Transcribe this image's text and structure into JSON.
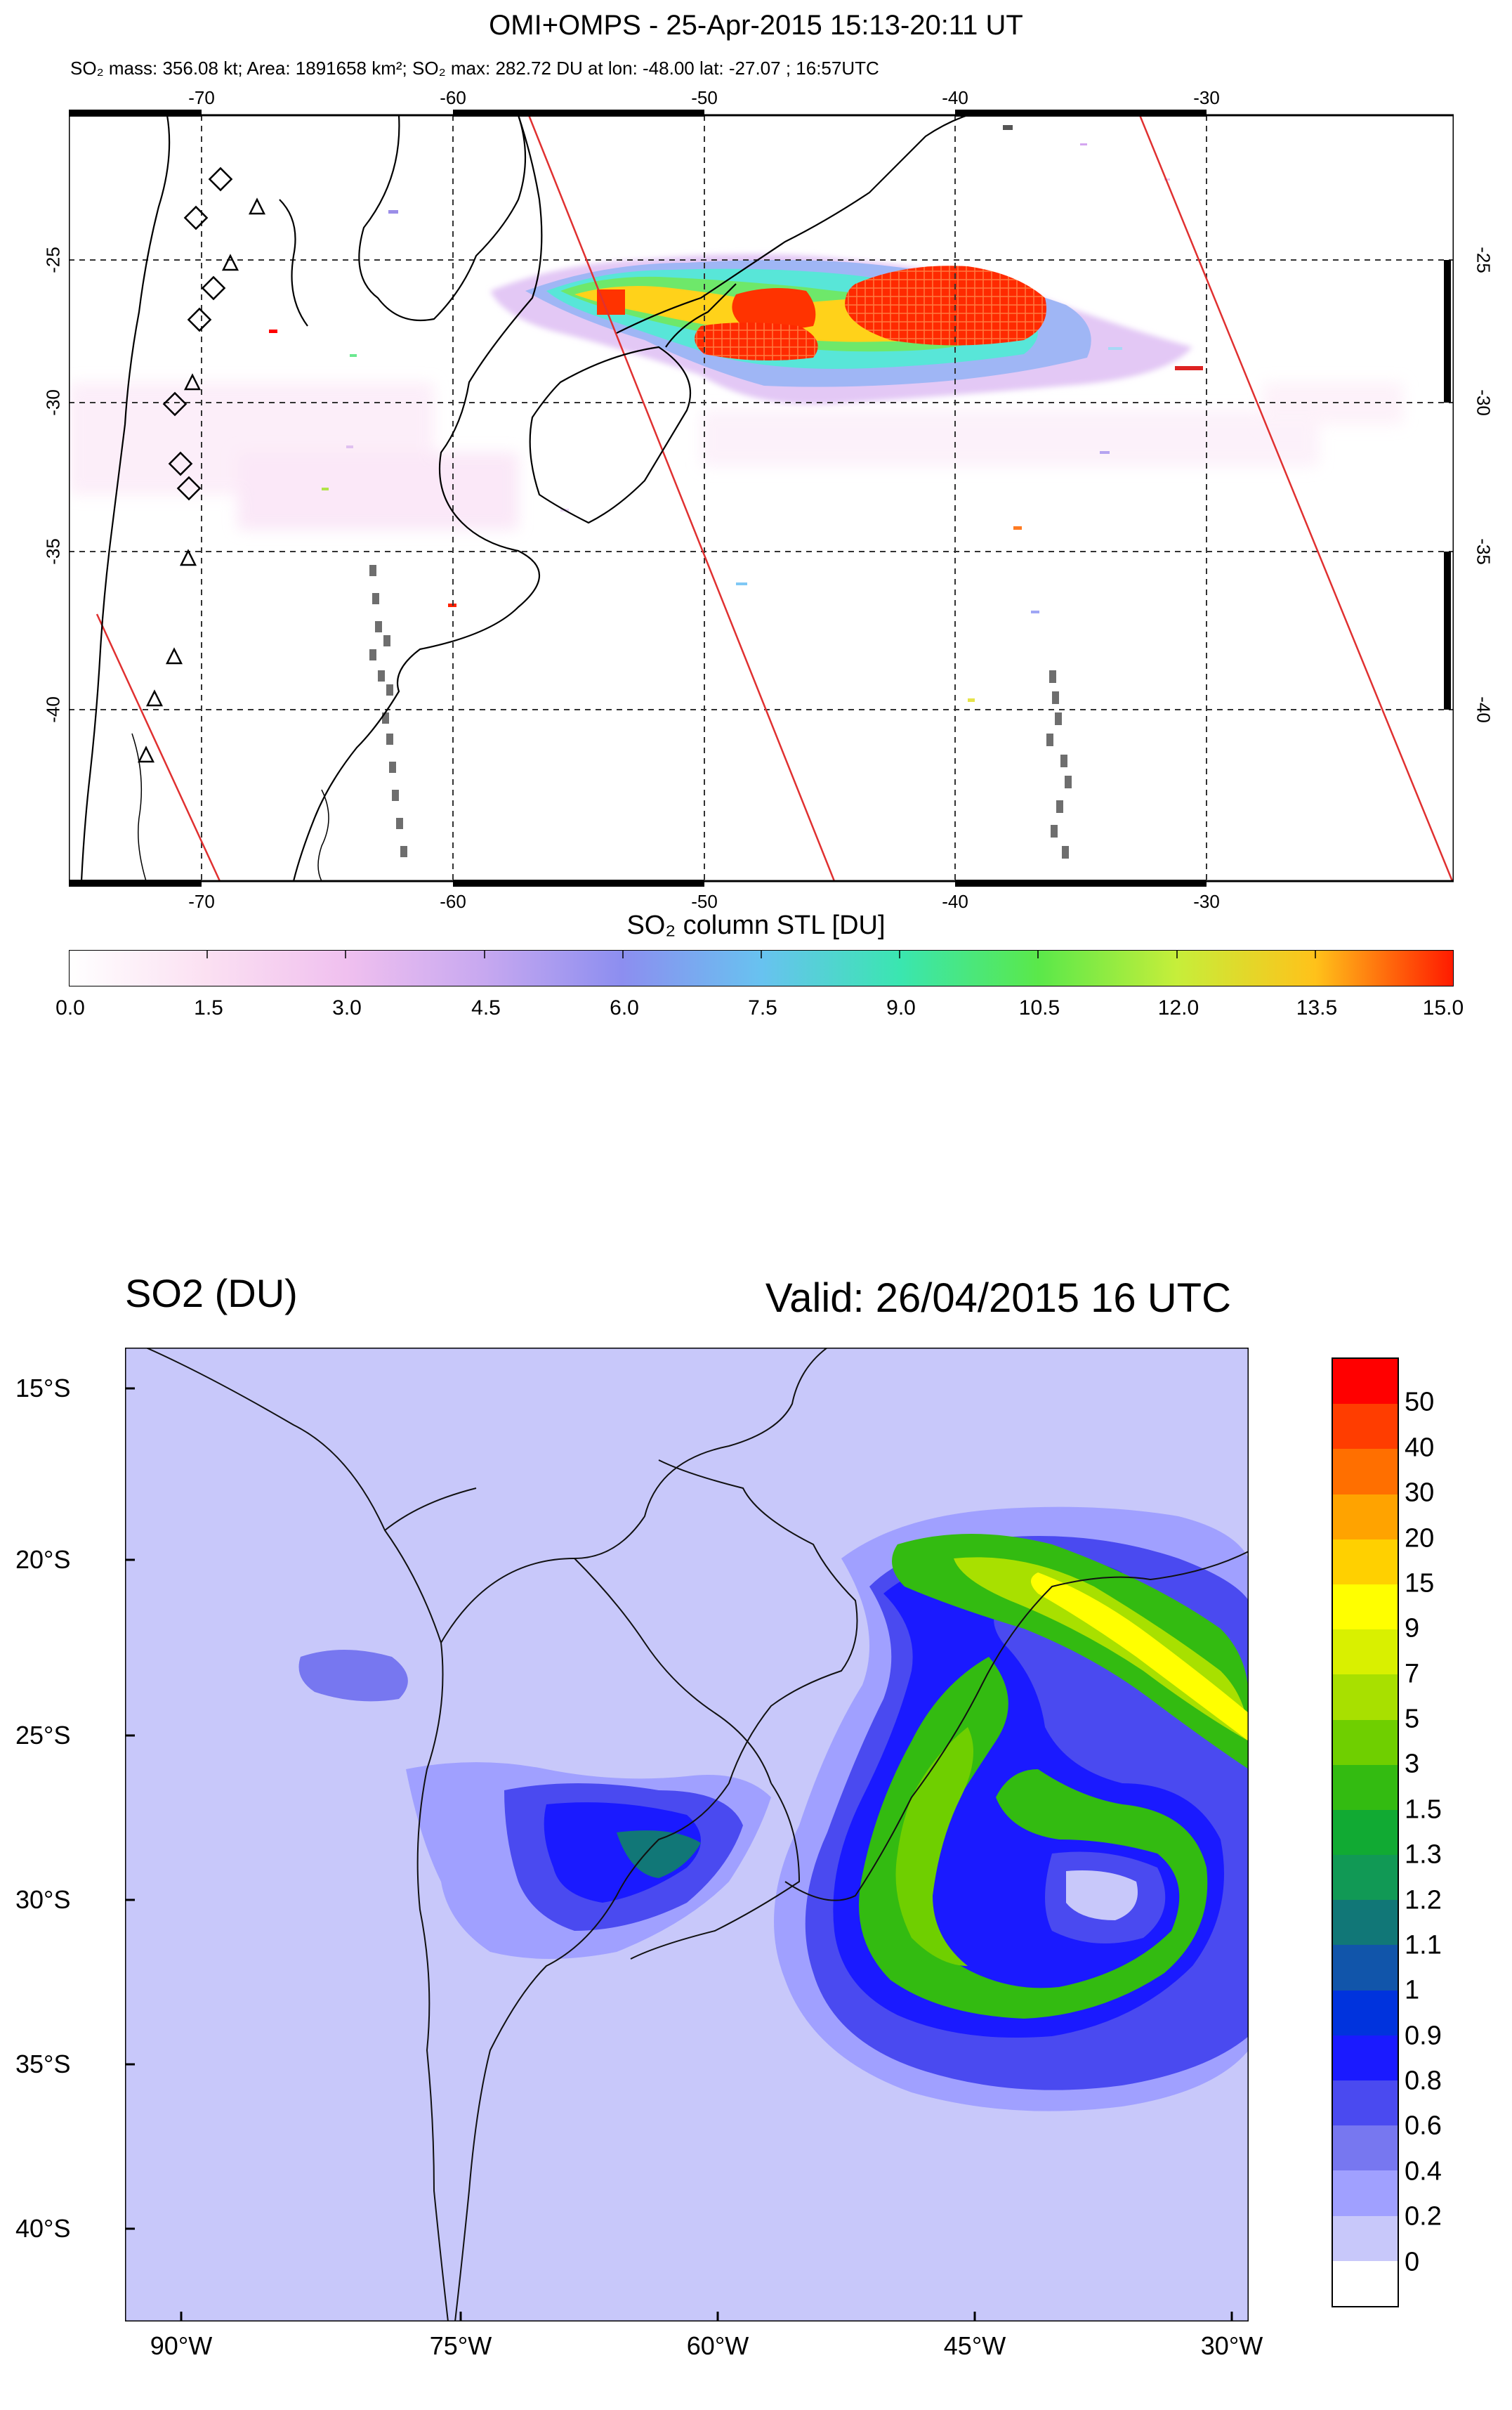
{
  "panel1": {
    "title": "OMI+OMPS - 25-Apr-2015 15:13-20:11 UT",
    "subtitle": "SO₂ mass: 356.08 kt; Area: 1891658 km²; SO₂ max: 282.72 DU at lon: -48.00 lat: -27.07 ; 16:57UTC",
    "lon_ticks": [
      "-70",
      "-60",
      "-50",
      "-40",
      "-30"
    ],
    "lat_ticks": [
      "-25",
      "-30",
      "-35",
      "-40"
    ],
    "colorbar": {
      "title": "SO₂ column STL [DU]",
      "labels": [
        "0.0",
        "1.5",
        "3.0",
        "4.5",
        "6.0",
        "7.5",
        "9.0",
        "10.5",
        "12.0",
        "13.5",
        "15.0"
      ],
      "range": [
        0,
        15
      ]
    }
  },
  "panel2": {
    "title": "SO2 (DU)",
    "valid": "Valid: 26/04/2015  16 UTC",
    "lat_ticks": [
      "15°S",
      "20°S",
      "25°S",
      "30°S",
      "35°S",
      "40°S"
    ],
    "lon_ticks": [
      "90°W",
      "75°W",
      "60°W",
      "45°W",
      "30°W"
    ],
    "legend": {
      "levels": [
        "50",
        "40",
        "30",
        "20",
        "15",
        "9",
        "7",
        "5",
        "3",
        "1.5",
        "1.3",
        "1.2",
        "1.1",
        "1",
        "0.9",
        "0.8",
        "0.6",
        "0.4",
        "0.2",
        "0"
      ],
      "colors": [
        "#ff0000",
        "#ff3d00",
        "#ff6f00",
        "#ffa300",
        "#ffd000",
        "#ffff00",
        "#d9f000",
        "#a8e000",
        "#6fcf00",
        "#33bb11",
        "#11aa33",
        "#119955",
        "#117777",
        "#1155aa",
        "#0033dd",
        "#1a1aff",
        "#4a4af0",
        "#7777f0",
        "#a0a0ff",
        "#c8c8fa",
        "#ffffff"
      ]
    }
  },
  "colors": {
    "background": "#ffffff",
    "panel2_sea": "#c8c8fa",
    "orbit_line": "#e03030"
  }
}
